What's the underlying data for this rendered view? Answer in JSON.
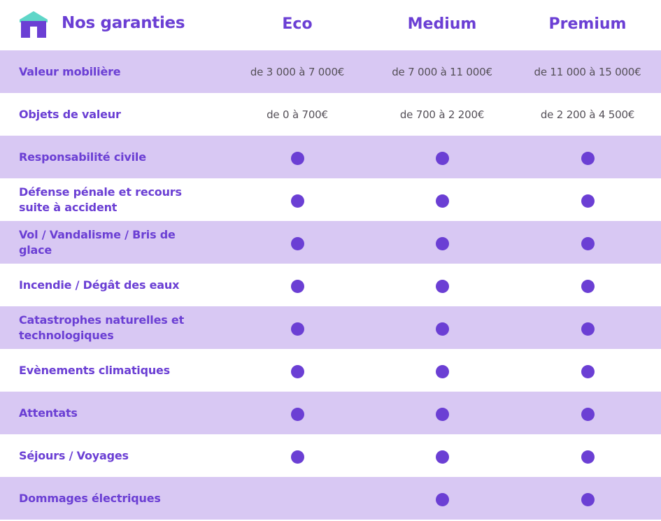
{
  "header": {
    "title": "Nos garanties",
    "logo_icon": "house-icon",
    "plans": [
      "Eco",
      "Medium",
      "Premium"
    ]
  },
  "colors": {
    "accent": "#6b3fd4",
    "row_shade": "#d8c8f3",
    "logo_roof": "#5fd6c8",
    "text_muted": "#555058"
  },
  "rows": [
    {
      "label": "Valeur mobilière",
      "shaded": true,
      "type": "text",
      "values": [
        "de 3 000 à 7 000€",
        "de 7 000 à 11 000€",
        "de 11 000 à 15 000€"
      ]
    },
    {
      "label": "Objets de valeur",
      "shaded": false,
      "type": "text",
      "values": [
        "de 0 à 700€",
        "de 700 à 2 200€",
        "de 2 200 à 4 500€"
      ]
    },
    {
      "label": "Responsabilité civile",
      "shaded": true,
      "type": "dots",
      "included": [
        true,
        true,
        true
      ]
    },
    {
      "label": "Défense pénale et recours suite à accident",
      "shaded": false,
      "type": "dots",
      "included": [
        true,
        true,
        true
      ]
    },
    {
      "label": "Vol / Vandalisme / Bris de glace",
      "shaded": true,
      "type": "dots",
      "included": [
        true,
        true,
        true
      ]
    },
    {
      "label": "Incendie / Dégât des eaux",
      "shaded": false,
      "type": "dots",
      "included": [
        true,
        true,
        true
      ]
    },
    {
      "label": "Catastrophes naturelles et technologiques",
      "shaded": true,
      "type": "dots",
      "included": [
        true,
        true,
        true
      ]
    },
    {
      "label": "Evènements climatiques",
      "shaded": false,
      "type": "dots",
      "included": [
        true,
        true,
        true
      ]
    },
    {
      "label": "Attentats",
      "shaded": true,
      "type": "dots",
      "included": [
        true,
        true,
        true
      ]
    },
    {
      "label": "Séjours / Voyages",
      "shaded": false,
      "type": "dots",
      "included": [
        true,
        true,
        true
      ]
    },
    {
      "label": "Dommages électriques",
      "shaded": true,
      "type": "dots",
      "included": [
        false,
        true,
        true
      ]
    }
  ]
}
